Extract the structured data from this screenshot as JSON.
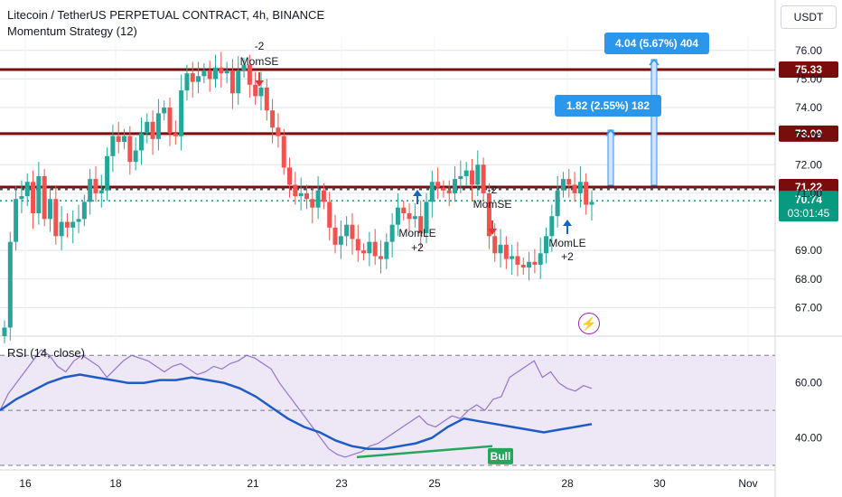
{
  "legend": {
    "symbol_title": "Litecoin / TetherUS PERPETUAL CONTRACT, 4h, BINANCE",
    "strategy": "Momentum Strategy (12)"
  },
  "currency": "USDT",
  "colors": {
    "up": "#26a69a",
    "down": "#ef5350",
    "level": "#7a0c0c",
    "rsi_line": "#1e5bc6",
    "rsi_band": "#ede7f6",
    "target": "#2a96ec",
    "bull": "#26a65b",
    "grid": "#e0e3eb",
    "dotted_price": "#089981"
  },
  "chart_data": [
    {
      "type": "candlestick",
      "title": "Litecoin / TetherUS PERPETUAL CONTRACT, 4h, BINANCE",
      "y_axis_ticks": [
        "76.00",
        "75.00",
        "74.00",
        "73.00",
        "72.00",
        "71.00",
        "69.00",
        "68.00",
        "67.00"
      ],
      "x_axis_ticks": [
        "16",
        "18",
        "21",
        "23",
        "25",
        "28",
        "30",
        "Nov"
      ],
      "ylim": [
        66.0,
        76.5
      ],
      "horizontal_levels": [
        {
          "value": 75.33,
          "label": "75.33"
        },
        {
          "value": 73.09,
          "label": "73.09"
        },
        {
          "value": 71.22,
          "label": "71.22"
        }
      ],
      "last_price": {
        "value": 70.74,
        "label": "70.74",
        "countdown": "03:01:45"
      },
      "candles_close": [
        66.3,
        69.3,
        70.8,
        70.9,
        71.4,
        70.3,
        71.6,
        70.1,
        70.8,
        69.5,
        70.0,
        69.8,
        70.0,
        70.1,
        70.7,
        71.5,
        71.0,
        71.1,
        72.3,
        73.0,
        72.8,
        73.0,
        72.1,
        72.5,
        73.1,
        73.5,
        72.9,
        73.8,
        74.0,
        73.1,
        73.0,
        74.6,
        75.2,
        74.9,
        75.1,
        75.3,
        75.0,
        75.4,
        75.2,
        75.3,
        74.5,
        75.3,
        75.5,
        74.8,
        74.4,
        74.7,
        73.9,
        73.3,
        73.0,
        71.9,
        71.3,
        70.9,
        71.0,
        70.8,
        70.5,
        71.1,
        70.7,
        69.8,
        69.2,
        69.5,
        69.9,
        69.4,
        69.0,
        68.9,
        69.3,
        68.8,
        68.7,
        69.3,
        69.9,
        70.5,
        70.3,
        70.1,
        70.2,
        69.6,
        70.7,
        71.4,
        71.2,
        71.1,
        71.0,
        71.5,
        71.6,
        71.8,
        71.3,
        72.0,
        71.0,
        69.5,
        68.9,
        69.2,
        68.7,
        68.8,
        68.5,
        68.4,
        68.6,
        68.5,
        68.9,
        69.5,
        70.2,
        71.1,
        71.5,
        71.3,
        71.0,
        71.4,
        70.6,
        70.7
      ],
      "signals": [
        {
          "type": "short",
          "label_top": "-2",
          "label": "MomSE"
        },
        {
          "type": "long",
          "label": "MomLE",
          "label_bottom": "+2"
        },
        {
          "type": "short",
          "label_top": "-2",
          "label": "MomSE"
        },
        {
          "type": "long",
          "label": "MomLE",
          "label_bottom": "+2"
        }
      ],
      "targets": [
        {
          "label": "4.04 (5.67%) 404"
        },
        {
          "label": "1.82 (2.55%) 182"
        }
      ]
    },
    {
      "type": "line",
      "title": "RSI (14, close)",
      "y_axis_ticks": [
        "60.00",
        "40.00"
      ],
      "ylim": [
        30,
        75
      ],
      "band": [
        30,
        70
      ],
      "midline": 50,
      "rsi_values": [
        50,
        56,
        60,
        64,
        68,
        72,
        70,
        66,
        64,
        68,
        70,
        68,
        66,
        62,
        65,
        68,
        70,
        69,
        68,
        66,
        64,
        66,
        67,
        65,
        63,
        64,
        66,
        65,
        67,
        68,
        70,
        69,
        67,
        65,
        60,
        56,
        52,
        48,
        44,
        40,
        36,
        34,
        33,
        34,
        35,
        37,
        38,
        40,
        42,
        44,
        46,
        48,
        45,
        44,
        46,
        48,
        47,
        50,
        52,
        50,
        54,
        55,
        62,
        64,
        66,
        68,
        62,
        64,
        60,
        58,
        57,
        59,
        58
      ],
      "ma_values": [
        50,
        54,
        57,
        60,
        62,
        63,
        62,
        61,
        60,
        60,
        61,
        61,
        62,
        61,
        60,
        58,
        55,
        51,
        47,
        44,
        42,
        39,
        37,
        36,
        36,
        37,
        38,
        40,
        44,
        47,
        46,
        45,
        44,
        43,
        42,
        43,
        44,
        45
      ],
      "annotation": "Bull"
    }
  ]
}
